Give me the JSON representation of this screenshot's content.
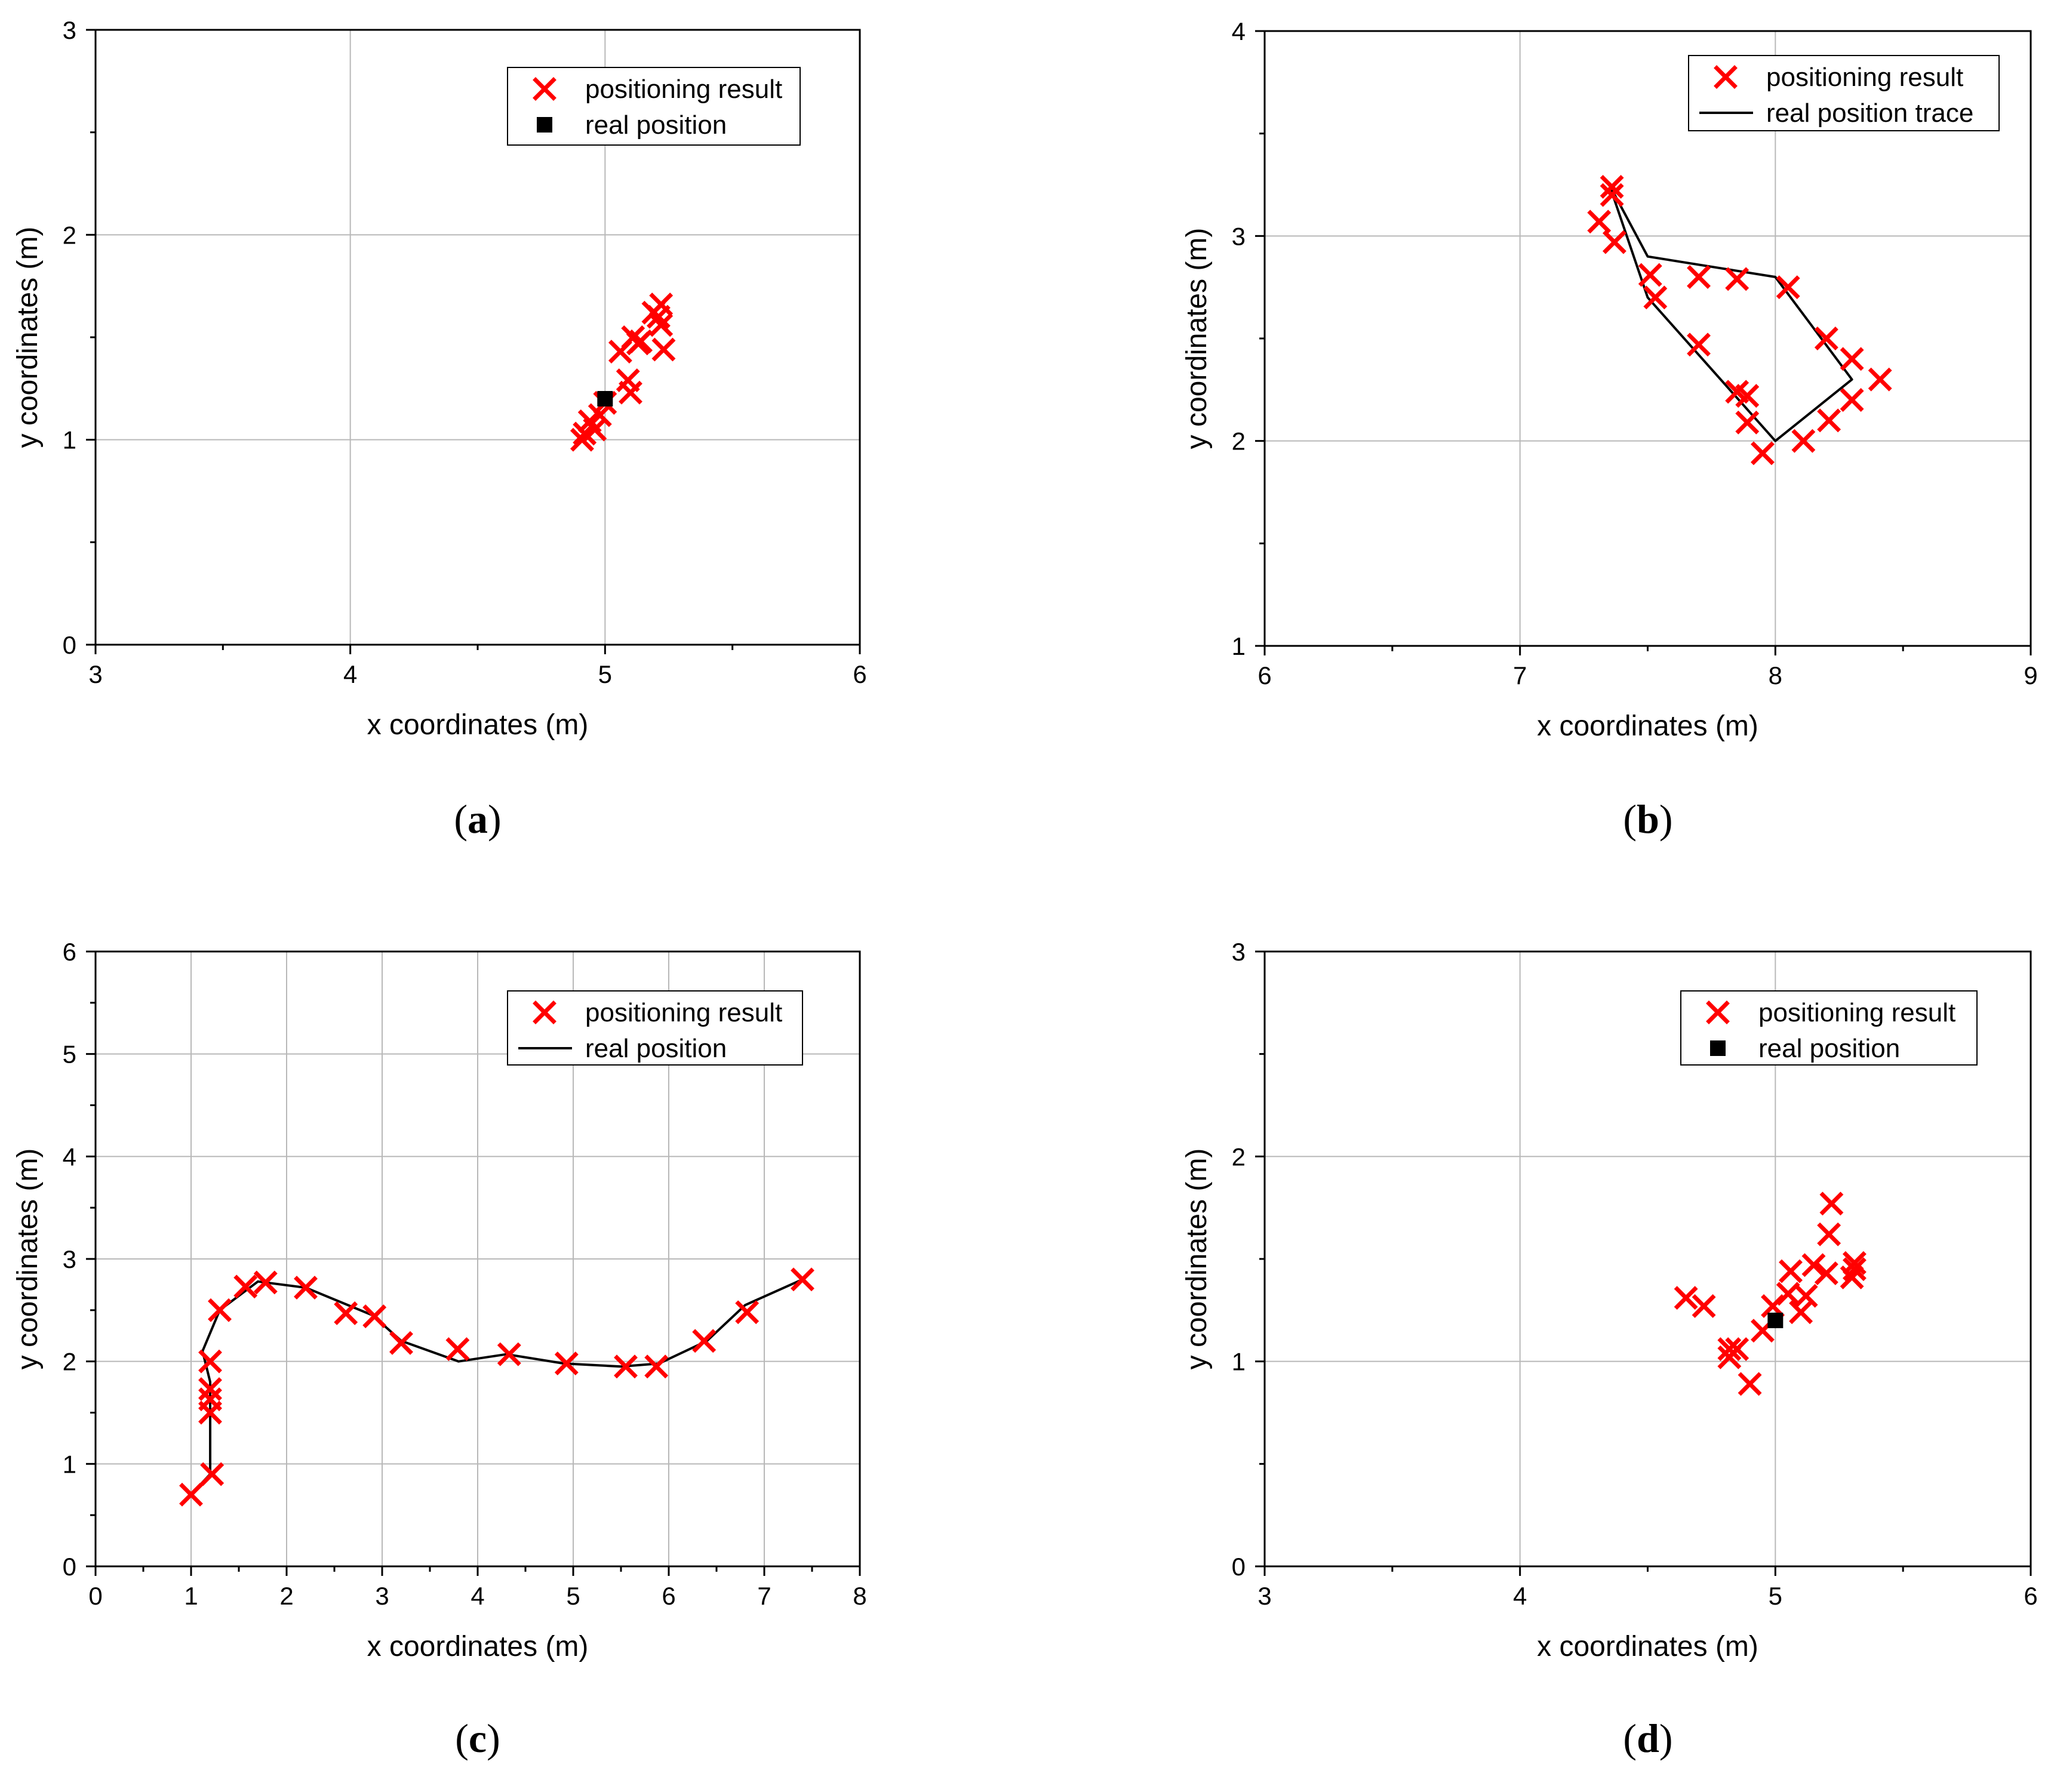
{
  "colors": {
    "marker": "#ff0000",
    "line": "#000000",
    "grid": "#b8b8b8",
    "axis": "#000000",
    "background": "#ffffff"
  },
  "chart_data": [
    {
      "type": "scatter",
      "panel": "(a)",
      "caption_letter": "a",
      "xlabel": "x coordinates (m)",
      "ylabel": "y coordinates (m)",
      "xlim": [
        3,
        6
      ],
      "ylim": [
        0,
        3
      ],
      "xticks": [
        3,
        4,
        5,
        6
      ],
      "yticks": [
        0,
        1,
        2,
        3
      ],
      "xticklabels": [
        "3",
        "4",
        "5",
        "6"
      ],
      "yticklabels": [
        "0",
        "1",
        "2",
        "3"
      ],
      "grid": true,
      "legend_position": "top-right",
      "legend": [
        "positioning result",
        "real position"
      ],
      "series": [
        {
          "name": "positioning result",
          "kind": "x-marker",
          "points": [
            [
              4.91,
              1.0
            ],
            [
              4.92,
              1.03
            ],
            [
              4.94,
              1.09
            ],
            [
              4.96,
              1.05
            ],
            [
              4.98,
              1.12
            ],
            [
              5.0,
              1.18
            ],
            [
              5.06,
              1.43
            ],
            [
              5.09,
              1.29
            ],
            [
              5.1,
              1.23
            ],
            [
              5.11,
              1.5
            ],
            [
              5.13,
              1.47
            ],
            [
              5.14,
              1.48
            ],
            [
              5.19,
              1.62
            ],
            [
              5.21,
              1.6
            ],
            [
              5.22,
              1.56
            ],
            [
              5.22,
              1.66
            ],
            [
              5.23,
              1.44
            ]
          ]
        },
        {
          "name": "real position",
          "kind": "square-marker",
          "points": [
            [
              5.0,
              1.2
            ]
          ]
        }
      ]
    },
    {
      "type": "scatter",
      "panel": "(b)",
      "caption_letter": "b",
      "xlabel": "x coordinates (m)",
      "ylabel": "y coordinates (m)",
      "xlim": [
        6,
        9
      ],
      "ylim": [
        1,
        4
      ],
      "xticks": [
        6,
        7,
        8,
        9
      ],
      "yticks": [
        1,
        2,
        3,
        4
      ],
      "xticklabels": [
        "6",
        "7",
        "8",
        "9"
      ],
      "yticklabels": [
        "1",
        "2",
        "3",
        "4"
      ],
      "grid": true,
      "legend_position": "top-right",
      "legend": [
        "positioning result",
        "real position trace"
      ],
      "series": [
        {
          "name": "positioning result",
          "kind": "x-marker",
          "points": [
            [
              7.31,
              3.07
            ],
            [
              7.36,
              3.2
            ],
            [
              7.36,
              3.24
            ],
            [
              7.37,
              2.97
            ],
            [
              7.51,
              2.81
            ],
            [
              7.53,
              2.7
            ],
            [
              7.7,
              2.8
            ],
            [
              7.7,
              2.47
            ],
            [
              7.85,
              2.79
            ],
            [
              7.85,
              2.24
            ],
            [
              7.89,
              2.22
            ],
            [
              7.89,
              2.09
            ],
            [
              7.95,
              1.94
            ],
            [
              8.05,
              2.75
            ],
            [
              8.11,
              2.0
            ],
            [
              8.2,
              2.5
            ],
            [
              8.21,
              2.1
            ],
            [
              8.3,
              2.4
            ],
            [
              8.3,
              2.2
            ],
            [
              8.41,
              2.3
            ]
          ]
        },
        {
          "name": "real position trace",
          "kind": "line",
          "points": [
            [
              7.35,
              3.25
            ],
            [
              7.5,
              2.9
            ],
            [
              8.0,
              2.8
            ],
            [
              8.3,
              2.3
            ],
            [
              8.0,
              2.0
            ],
            [
              7.5,
              2.7
            ],
            [
              7.35,
              3.25
            ]
          ]
        }
      ]
    },
    {
      "type": "scatter",
      "panel": "(c)",
      "caption_letter": "c",
      "xlabel": "x coordinates (m)",
      "ylabel": "y coordinates (m)",
      "xlim": [
        0,
        8
      ],
      "ylim": [
        0,
        6
      ],
      "xticks": [
        0,
        1,
        2,
        3,
        4,
        5,
        6,
        7,
        8
      ],
      "yticks": [
        0,
        1,
        2,
        3,
        4,
        5,
        6
      ],
      "xticklabels": [
        "0",
        "1",
        "2",
        "3",
        "4",
        "5",
        "6",
        "7",
        "8"
      ],
      "yticklabels": [
        "0",
        "1",
        "2",
        "3",
        "4",
        "5",
        "6"
      ],
      "grid": true,
      "legend_position": "top-right",
      "legend": [
        "positioning result",
        "real position"
      ],
      "series": [
        {
          "name": "positioning result",
          "kind": "x-marker",
          "points": [
            [
              1.0,
              0.7
            ],
            [
              1.22,
              0.9
            ],
            [
              1.2,
              1.5
            ],
            [
              1.2,
              1.63
            ],
            [
              1.2,
              1.73
            ],
            [
              1.2,
              2.0
            ],
            [
              1.3,
              2.5
            ],
            [
              1.57,
              2.73
            ],
            [
              1.78,
              2.77
            ],
            [
              2.2,
              2.72
            ],
            [
              2.62,
              2.47
            ],
            [
              2.92,
              2.44
            ],
            [
              3.2,
              2.18
            ],
            [
              3.79,
              2.12
            ],
            [
              4.33,
              2.07
            ],
            [
              4.93,
              1.98
            ],
            [
              5.55,
              1.95
            ],
            [
              5.87,
              1.95
            ],
            [
              6.37,
              2.2
            ],
            [
              6.82,
              2.48
            ],
            [
              7.4,
              2.8
            ]
          ]
        },
        {
          "name": "real position",
          "kind": "line",
          "points": [
            [
              1.0,
              0.7
            ],
            [
              1.2,
              0.9
            ],
            [
              1.2,
              1.8
            ],
            [
              1.12,
              2.1
            ],
            [
              1.3,
              2.5
            ],
            [
              1.7,
              2.78
            ],
            [
              2.2,
              2.72
            ],
            [
              2.9,
              2.45
            ],
            [
              3.2,
              2.2
            ],
            [
              3.8,
              2.0
            ],
            [
              4.3,
              2.07
            ],
            [
              4.9,
              1.98
            ],
            [
              5.5,
              1.95
            ],
            [
              5.9,
              1.98
            ],
            [
              6.4,
              2.2
            ],
            [
              6.8,
              2.55
            ],
            [
              7.4,
              2.8
            ]
          ]
        }
      ]
    },
    {
      "type": "scatter",
      "panel": "(d)",
      "caption_letter": "d",
      "xlabel": "x coordinates (m)",
      "ylabel": "y coordinates (m)",
      "xlim": [
        3,
        6
      ],
      "ylim": [
        0,
        3
      ],
      "xticks": [
        3,
        4,
        5,
        6
      ],
      "yticks": [
        0,
        1,
        2,
        3
      ],
      "xticklabels": [
        "3",
        "4",
        "5",
        "6"
      ],
      "yticklabels": [
        "0",
        "1",
        "2",
        "3"
      ],
      "grid": true,
      "legend_position": "top-right",
      "legend": [
        "positioning result",
        "real position"
      ],
      "series": [
        {
          "name": "positioning result",
          "kind": "x-marker",
          "points": [
            [
              4.65,
              1.31
            ],
            [
              4.72,
              1.27
            ],
            [
              4.82,
              1.02
            ],
            [
              4.82,
              1.06
            ],
            [
              4.85,
              1.06
            ],
            [
              4.9,
              0.89
            ],
            [
              4.95,
              1.15
            ],
            [
              4.99,
              1.27
            ],
            [
              5.05,
              1.33
            ],
            [
              5.06,
              1.44
            ],
            [
              5.1,
              1.24
            ],
            [
              5.12,
              1.32
            ],
            [
              5.15,
              1.47
            ],
            [
              5.2,
              1.43
            ],
            [
              5.21,
              1.62
            ],
            [
              5.22,
              1.77
            ],
            [
              5.3,
              1.41
            ],
            [
              5.31,
              1.45
            ],
            [
              5.31,
              1.48
            ]
          ]
        },
        {
          "name": "real position",
          "kind": "square-marker",
          "points": [
            [
              5.0,
              1.2
            ]
          ]
        }
      ]
    }
  ]
}
